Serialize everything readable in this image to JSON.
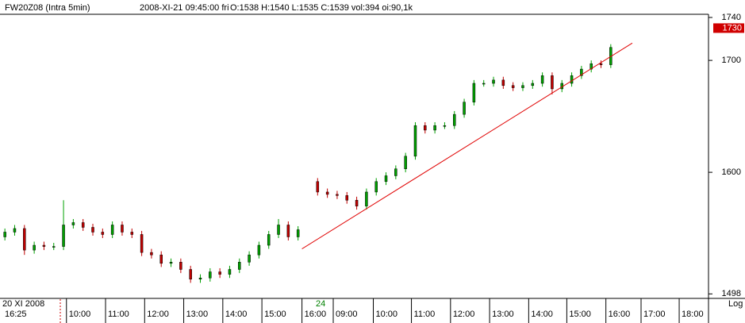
{
  "chart_data": {
    "type": "candlestick",
    "title": "FW20Z08 (Intra 5min)",
    "subtitle": "2008-XI-21  09:45:00 fri",
    "quote": "O:1538 H:1540 L:1535 C:1539 vol:394 oi:90,1k",
    "date_label": "20 XI 2008",
    "time_label": "16:25",
    "session_label": "24",
    "scale_label": "Log",
    "log_scale": true,
    "up_color": "#00a000",
    "down_color": "#c00000",
    "trend_color": "#e00000",
    "xlim": [
      -0.5,
      72
    ],
    "ylim": [
      1495,
      1743
    ],
    "yticks": [
      1498,
      1600,
      1700,
      1740
    ],
    "xticks": [
      {
        "value": 6.3,
        "label": "10:00"
      },
      {
        "value": 10.3,
        "label": "11:00"
      },
      {
        "value": 14.3,
        "label": "12:00"
      },
      {
        "value": 18.3,
        "label": "13:00"
      },
      {
        "value": 22.3,
        "label": "14:00"
      },
      {
        "value": 26.3,
        "label": "15:00"
      },
      {
        "value": 30.4,
        "label": "16:00"
      },
      {
        "value": 33.6,
        "label": "09:00"
      },
      {
        "value": 37.7,
        "label": "10:00"
      },
      {
        "value": 41.6,
        "label": "11:00"
      },
      {
        "value": 45.6,
        "label": "12:00"
      },
      {
        "value": 49.6,
        "label": "13:00"
      },
      {
        "value": 53.6,
        "label": "14:00"
      },
      {
        "value": 57.5,
        "label": "15:00"
      },
      {
        "value": 61.5,
        "label": "16:00"
      },
      {
        "value": 65.1,
        "label": "17:00"
      },
      {
        "value": 69.0,
        "label": "18:00"
      }
    ],
    "last_price": 1730,
    "trendline": {
      "x": [
        30.4,
        64.2
      ],
      "y": [
        1535,
        1716
      ]
    },
    "x": [
      0,
      1,
      2,
      3,
      4,
      5,
      6,
      7,
      8,
      9,
      10,
      11,
      12,
      13,
      14,
      15,
      16,
      17,
      18,
      19,
      20,
      21,
      22,
      23,
      24,
      25,
      26,
      27,
      28,
      29,
      30,
      32,
      33,
      34,
      35,
      36,
      37,
      38,
      39,
      40,
      41,
      42,
      43,
      44,
      45,
      46,
      47,
      48,
      49,
      50,
      51,
      52,
      53,
      54,
      55,
      56,
      57,
      58,
      59,
      60,
      61,
      62
    ],
    "open": [
      1545,
      1549,
      1552,
      1534,
      1538,
      1537,
      1537,
      1555,
      1557,
      1553,
      1549,
      1547,
      1555,
      1549,
      1547,
      1532,
      1530,
      1523,
      1524,
      1518,
      1510,
      1511,
      1516,
      1514,
      1518,
      1524,
      1530,
      1538,
      1547,
      1555,
      1545,
      1592,
      1583,
      1581,
      1580,
      1576,
      1571,
      1583,
      1592,
      1597,
      1603,
      1614,
      1641,
      1637,
      1641,
      1641,
      1651,
      1662,
      1679,
      1679,
      1682,
      1677,
      1675,
      1677,
      1679,
      1686,
      1674,
      1679,
      1686,
      1692,
      1697,
      1696
    ],
    "high": [
      1552,
      1555,
      1555,
      1541,
      1541,
      1540,
      1576,
      1560,
      1560,
      1556,
      1552,
      1558,
      1558,
      1552,
      1550,
      1535,
      1533,
      1527,
      1527,
      1521,
      1514,
      1519,
      1519,
      1521,
      1527,
      1533,
      1541,
      1550,
      1560,
      1558,
      1554,
      1595,
      1586,
      1584,
      1583,
      1579,
      1586,
      1595,
      1600,
      1606,
      1617,
      1644,
      1644,
      1644,
      1644,
      1654,
      1665,
      1682,
      1682,
      1685,
      1685,
      1680,
      1680,
      1682,
      1689,
      1689,
      1682,
      1689,
      1695,
      1700,
      1700,
      1715
    ],
    "low": [
      1542,
      1546,
      1530,
      1531,
      1534,
      1534,
      1534,
      1552,
      1550,
      1546,
      1544,
      1544,
      1546,
      1544,
      1529,
      1527,
      1520,
      1520,
      1515,
      1507,
      1507,
      1508,
      1511,
      1511,
      1515,
      1521,
      1527,
      1535,
      1544,
      1542,
      1542,
      1580,
      1578,
      1577,
      1573,
      1568,
      1568,
      1580,
      1589,
      1594,
      1600,
      1611,
      1634,
      1634,
      1638,
      1638,
      1648,
      1659,
      1676,
      1676,
      1674,
      1672,
      1672,
      1674,
      1676,
      1669,
      1671,
      1676,
      1683,
      1689,
      1693,
      1693
    ],
    "close": [
      1549,
      1552,
      1534,
      1538,
      1537,
      1537,
      1555,
      1557,
      1553,
      1549,
      1547,
      1555,
      1549,
      1547,
      1532,
      1530,
      1523,
      1524,
      1518,
      1510,
      1511,
      1516,
      1514,
      1518,
      1524,
      1530,
      1538,
      1547,
      1555,
      1545,
      1551,
      1583,
      1581,
      1580,
      1576,
      1571,
      1583,
      1592,
      1597,
      1603,
      1614,
      1641,
      1637,
      1641,
      1641,
      1651,
      1662,
      1679,
      1679,
      1682,
      1677,
      1675,
      1677,
      1679,
      1686,
      1674,
      1679,
      1686,
      1692,
      1697,
      1696,
      1712
    ]
  }
}
